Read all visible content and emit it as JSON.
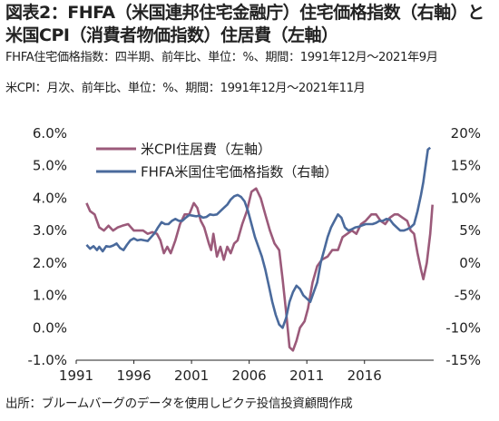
{
  "figure": {
    "title": "図表2：FHFA（米国連邦住宅金融庁）住宅価格指数（右軸）と米国CPI（消費者物価指数）住居費（左軸）",
    "note_fhfa": "FHFA住宅価格指数：四半期、前年比、単位：%、期間：1991年12月～2021年9月",
    "note_cpi": "米CPI：月次、前年比、単位：%、期間：1991年12月～2021年11月",
    "source": "出所：ブルームバーグのデータを使用しピクテ投信投資顧問作成"
  },
  "chart_data": {
    "type": "line",
    "x_range": [
      1991,
      2022
    ],
    "x_ticks": [
      "1991",
      "1996",
      "2001",
      "2006",
      "2011",
      "2016"
    ],
    "y_left": {
      "range": [
        -1.0,
        6.0
      ],
      "ticks": [
        "6.0%",
        "5.0%",
        "4.0%",
        "3.0%",
        "2.0%",
        "1.0%",
        "0.0%",
        "-1.0%"
      ]
    },
    "y_right": {
      "range": [
        -15,
        20
      ],
      "ticks": [
        "20%",
        "15%",
        "10%",
        "5%",
        "0%",
        "-5%",
        "-10%",
        "-15%"
      ]
    },
    "legend_position": "top-left",
    "series": [
      {
        "name": "米CPI住居費（左軸）",
        "axis": "left",
        "color": "#9b5a7a",
        "points": [
          [
            1991.9,
            3.85
          ],
          [
            1992.2,
            3.6
          ],
          [
            1992.6,
            3.5
          ],
          [
            1993.0,
            3.1
          ],
          [
            1993.4,
            3.0
          ],
          [
            1993.8,
            3.15
          ],
          [
            1994.2,
            3.0
          ],
          [
            1994.6,
            3.1
          ],
          [
            1995.0,
            3.15
          ],
          [
            1995.5,
            3.2
          ],
          [
            1996.0,
            3.0
          ],
          [
            1996.4,
            3.0
          ],
          [
            1996.8,
            3.0
          ],
          [
            1997.2,
            2.9
          ],
          [
            1997.6,
            2.95
          ],
          [
            1998.0,
            2.9
          ],
          [
            1998.3,
            2.7
          ],
          [
            1998.6,
            2.3
          ],
          [
            1998.9,
            2.5
          ],
          [
            1999.2,
            2.3
          ],
          [
            1999.6,
            2.7
          ],
          [
            2000.0,
            3.2
          ],
          [
            2000.4,
            3.5
          ],
          [
            2000.8,
            3.5
          ],
          [
            2001.2,
            3.85
          ],
          [
            2001.5,
            3.7
          ],
          [
            2001.8,
            3.3
          ],
          [
            2002.1,
            3.1
          ],
          [
            2002.5,
            2.6
          ],
          [
            2002.7,
            2.4
          ],
          [
            2002.9,
            2.9
          ],
          [
            2003.2,
            2.2
          ],
          [
            2003.5,
            2.5
          ],
          [
            2003.8,
            2.1
          ],
          [
            2004.1,
            2.5
          ],
          [
            2004.4,
            2.3
          ],
          [
            2004.7,
            2.6
          ],
          [
            2005.0,
            2.7
          ],
          [
            2005.4,
            3.2
          ],
          [
            2005.8,
            3.6
          ],
          [
            2006.2,
            4.2
          ],
          [
            2006.6,
            4.3
          ],
          [
            2007.0,
            4.0
          ],
          [
            2007.4,
            3.5
          ],
          [
            2007.8,
            3.0
          ],
          [
            2008.2,
            2.6
          ],
          [
            2008.6,
            2.4
          ],
          [
            2008.9,
            1.5
          ],
          [
            2009.2,
            0.5
          ],
          [
            2009.5,
            -0.6
          ],
          [
            2009.8,
            -0.7
          ],
          [
            2010.1,
            -0.4
          ],
          [
            2010.4,
            0.0
          ],
          [
            2010.8,
            0.2
          ],
          [
            2011.1,
            0.6
          ],
          [
            2011.5,
            1.4
          ],
          [
            2011.9,
            1.9
          ],
          [
            2012.3,
            2.1
          ],
          [
            2012.8,
            2.2
          ],
          [
            2013.2,
            2.4
          ],
          [
            2013.7,
            2.4
          ],
          [
            2014.1,
            2.8
          ],
          [
            2014.5,
            2.9
          ],
          [
            2014.9,
            3.0
          ],
          [
            2015.3,
            2.9
          ],
          [
            2015.7,
            3.2
          ],
          [
            2016.1,
            3.3
          ],
          [
            2016.6,
            3.5
          ],
          [
            2017.0,
            3.5
          ],
          [
            2017.4,
            3.3
          ],
          [
            2017.8,
            3.2
          ],
          [
            2018.2,
            3.4
          ],
          [
            2018.6,
            3.5
          ],
          [
            2018.9,
            3.5
          ],
          [
            2019.3,
            3.4
          ],
          [
            2019.7,
            3.3
          ],
          [
            2020.0,
            3.0
          ],
          [
            2020.3,
            2.9
          ],
          [
            2020.6,
            2.3
          ],
          [
            2020.9,
            1.8
          ],
          [
            2021.1,
            1.5
          ],
          [
            2021.4,
            2.0
          ],
          [
            2021.7,
            2.9
          ],
          [
            2021.9,
            3.8
          ]
        ]
      },
      {
        "name": "FHFA米国住宅価格指数（右軸）",
        "axis": "right",
        "color": "#4a6a9c",
        "points": [
          [
            1991.9,
            2.8
          ],
          [
            1992.2,
            2.2
          ],
          [
            1992.5,
            2.6
          ],
          [
            1992.8,
            2.0
          ],
          [
            1993.0,
            2.5
          ],
          [
            1993.3,
            1.8
          ],
          [
            1993.6,
            2.6
          ],
          [
            1993.9,
            2.5
          ],
          [
            1994.2,
            2.7
          ],
          [
            1994.5,
            3.0
          ],
          [
            1994.8,
            2.3
          ],
          [
            1995.1,
            2.0
          ],
          [
            1995.4,
            2.8
          ],
          [
            1995.7,
            3.5
          ],
          [
            1996.0,
            3.8
          ],
          [
            1996.3,
            3.5
          ],
          [
            1996.6,
            3.6
          ],
          [
            1996.9,
            3.5
          ],
          [
            1997.2,
            3.4
          ],
          [
            1997.5,
            4.0
          ],
          [
            1997.8,
            4.6
          ],
          [
            1998.1,
            5.5
          ],
          [
            1998.4,
            6.3
          ],
          [
            1998.7,
            6.0
          ],
          [
            1999.0,
            6.0
          ],
          [
            1999.3,
            6.5
          ],
          [
            1999.6,
            6.8
          ],
          [
            1999.9,
            6.5
          ],
          [
            2000.2,
            6.5
          ],
          [
            2000.5,
            7.0
          ],
          [
            2000.8,
            7.4
          ],
          [
            2001.1,
            7.3
          ],
          [
            2001.4,
            7.2
          ],
          [
            2001.7,
            7.3
          ],
          [
            2002.0,
            7.0
          ],
          [
            2002.3,
            7.1
          ],
          [
            2002.6,
            7.5
          ],
          [
            2002.9,
            7.4
          ],
          [
            2003.2,
            7.5
          ],
          [
            2003.5,
            8.0
          ],
          [
            2003.8,
            8.5
          ],
          [
            2004.1,
            9.0
          ],
          [
            2004.4,
            9.8
          ],
          [
            2004.7,
            10.3
          ],
          [
            2005.0,
            10.5
          ],
          [
            2005.3,
            10.2
          ],
          [
            2005.6,
            9.5
          ],
          [
            2005.9,
            8.0
          ],
          [
            2006.2,
            6.0
          ],
          [
            2006.5,
            4.0
          ],
          [
            2006.8,
            2.5
          ],
          [
            2007.1,
            1.0
          ],
          [
            2007.4,
            -1.0
          ],
          [
            2007.7,
            -3.5
          ],
          [
            2008.0,
            -6.0
          ],
          [
            2008.3,
            -8.0
          ],
          [
            2008.6,
            -9.5
          ],
          [
            2008.9,
            -10.0
          ],
          [
            2009.2,
            -8.5
          ],
          [
            2009.5,
            -6.0
          ],
          [
            2009.8,
            -4.5
          ],
          [
            2010.1,
            -3.5
          ],
          [
            2010.4,
            -4.0
          ],
          [
            2010.7,
            -5.0
          ],
          [
            2011.0,
            -5.5
          ],
          [
            2011.3,
            -6.0
          ],
          [
            2011.6,
            -4.5
          ],
          [
            2011.9,
            -3.0
          ],
          [
            2012.2,
            0.0
          ],
          [
            2012.5,
            2.0
          ],
          [
            2012.8,
            4.0
          ],
          [
            2013.1,
            5.5
          ],
          [
            2013.4,
            6.5
          ],
          [
            2013.7,
            7.5
          ],
          [
            2014.0,
            7.0
          ],
          [
            2014.3,
            5.5
          ],
          [
            2014.6,
            5.0
          ],
          [
            2014.9,
            5.2
          ],
          [
            2015.2,
            5.5
          ],
          [
            2015.5,
            5.6
          ],
          [
            2015.8,
            5.8
          ],
          [
            2016.1,
            6.0
          ],
          [
            2016.4,
            6.0
          ],
          [
            2016.7,
            6.0
          ],
          [
            2017.0,
            6.2
          ],
          [
            2017.3,
            6.5
          ],
          [
            2017.6,
            6.5
          ],
          [
            2017.9,
            6.8
          ],
          [
            2018.2,
            6.7
          ],
          [
            2018.5,
            6.0
          ],
          [
            2018.8,
            5.5
          ],
          [
            2019.1,
            5.0
          ],
          [
            2019.4,
            5.0
          ],
          [
            2019.7,
            5.2
          ],
          [
            2020.0,
            5.5
          ],
          [
            2020.3,
            6.0
          ],
          [
            2020.6,
            8.0
          ],
          [
            2020.9,
            10.5
          ],
          [
            2021.1,
            12.5
          ],
          [
            2021.3,
            15.0
          ],
          [
            2021.5,
            17.5
          ],
          [
            2021.7,
            17.8
          ]
        ]
      }
    ]
  }
}
